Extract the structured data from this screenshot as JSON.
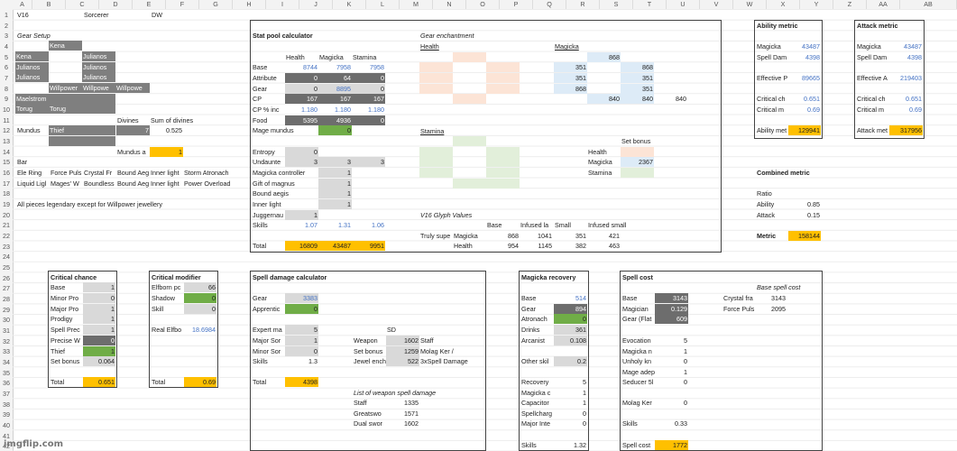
{
  "columns": [
    "A",
    "B",
    "C",
    "D",
    "E",
    "F",
    "G",
    "H",
    "I",
    "J",
    "K",
    "L",
    "M",
    "N",
    "O",
    "P",
    "Q",
    "R",
    "S",
    "T",
    "U",
    "V",
    "W",
    "X",
    "Y",
    "Z",
    "AA",
    "AB"
  ],
  "rows": [
    "1",
    "2",
    "3",
    "4",
    "5",
    "6",
    "7",
    "8",
    "9",
    "10",
    "11",
    "12",
    "13",
    "14",
    "15",
    "16",
    "17",
    "18",
    "19",
    "20",
    "21",
    "22",
    "23",
    "24",
    "25",
    "26",
    "27",
    "28",
    "29",
    "30",
    "31",
    "32",
    "33",
    "34",
    "35",
    "36",
    "37",
    "38",
    "39",
    "40",
    "41",
    "42"
  ],
  "watermark": "imgflip.com",
  "top": {
    "v16": "V16",
    "sorcerer": "Sorcerer",
    "dw": "DW"
  },
  "gear": {
    "title": "Gear Setup",
    "r4": "Kena",
    "r5a": "Kena",
    "r5b": "Julianos",
    "r6a": "Julianos",
    "r6b": "Julianos",
    "r7a": "Julianos",
    "r7b": "Julianos",
    "r8a": "Willpower",
    "r8b": "Willpowe",
    "r8c": "Willpowe",
    "r9": "Maelstrom",
    "r10a": "Torug",
    "r10b": "Torug",
    "divines": "Divines",
    "sum_divines": "Sum of divines",
    "mundus": "Mundus",
    "thief": "Thief",
    "div_val": "7",
    "sum_val": "0.525",
    "mundus_a": "Mundus a",
    "mundus_val": "1",
    "bar": "Bar",
    "r16": [
      "Ele Ring",
      "Force Puls",
      "Crystal Fr",
      "Bound Aeg",
      "Inner light",
      "Storm Atronach"
    ],
    "r17": [
      "Liquid Ligl",
      "Mages' W",
      "Boundless",
      "Bound Aeg",
      "Inner light",
      "Power Overload"
    ],
    "note": "All pieces legendary except for Willpower jewellery"
  },
  "stat": {
    "title": "Stat pool calculator",
    "health": "Health",
    "magicka": "Magicka",
    "stamina": "Stamina",
    "rows": [
      {
        "label": "Base",
        "h": "8744",
        "m": "7958",
        "s": "7958"
      },
      {
        "label": "Attribute",
        "h": "0",
        "m": "64",
        "s": "0"
      },
      {
        "label": "Gear",
        "h": "0",
        "m": "8895",
        "s": "0"
      },
      {
        "label": "CP",
        "h": "167",
        "m": "167",
        "s": "167"
      },
      {
        "label": "CP % inc",
        "h": "1.180",
        "m": "1.180",
        "s": "1.180"
      },
      {
        "label": "Food",
        "h": "5395",
        "m": "4936",
        "s": "0"
      }
    ],
    "mage_mundus": "Mage mundus",
    "mage_val": "0",
    "entropy": "Entropy",
    "entropy_v": "0",
    "undaunted": "Undaunte",
    "und_h": "3",
    "und_m": "3",
    "und_s": "3",
    "magicka_controller": "Magicka controller",
    "mc_v": "1",
    "gift": "Gift of magnus",
    "gift_v": "1",
    "bound": "Bound aegis",
    "bound_v": "1",
    "inner": "Inner light",
    "inner_v": "1",
    "jugg": "Juggernau",
    "jugg_v": "1",
    "skills": "Skills",
    "sk_h": "1.07",
    "sk_m": "1.31",
    "sk_s": "1.06",
    "total": "Total",
    "t_h": "16809",
    "t_m": "43487",
    "t_s": "9951"
  },
  "ench": {
    "title": "Gear enchantment",
    "health": "Health",
    "magicka": "Magicka",
    "stamina": "Stamina",
    "m_top": "868",
    "m_col1": [
      "351",
      "351",
      "868"
    ],
    "m_col2": [
      "868",
      "351",
      "351"
    ],
    "m_row": [
      "840",
      "840",
      "840"
    ],
    "set_bonus": "Set bonus",
    "sb_health": "Health",
    "sb_magicka": "Magicka",
    "sb_magicka_v": "2367",
    "sb_stamina": "Stamina",
    "glyph_title": "V16 Glyph Values",
    "g_hdr": [
      "Base",
      "Infused la",
      "Small",
      "Infused small"
    ],
    "g_r1_label": "Truly supe",
    "g_r1_type": "Magicka",
    "g_r1": [
      "868",
      "1041",
      "351",
      "421"
    ],
    "g_r2_type": "Health",
    "g_r2": [
      "954",
      "1145",
      "382",
      "463"
    ]
  },
  "ability": {
    "title": "Ability metric",
    "magicka": "Magicka",
    "magicka_v": "43487",
    "spell": "Spell Dam",
    "spell_v": "4398",
    "eff": "Effective P",
    "eff_v": "89665",
    "crit_ch": "Critical ch",
    "crit_ch_v": "0.651",
    "crit_m": "Critical m",
    "crit_m_v": "0.69",
    "metric": "Ability met",
    "metric_v": "129941"
  },
  "attack": {
    "title": "Attack metric",
    "magicka": "Magicka",
    "magicka_v": "43487",
    "spell": "Spell Dam",
    "spell_v": "4398",
    "eff": "Effective A",
    "eff_v": "219403",
    "crit_ch": "Critical ch",
    "crit_ch_v": "0.651",
    "crit_m": "Critical m",
    "crit_m_v": "0.69",
    "metric": "Attack met",
    "metric_v": "317956"
  },
  "combined": {
    "title": "Combined metric",
    "ratio": "Ratio",
    "ability": "Ability",
    "ability_v": "0.85",
    "attack": "Attack",
    "attack_v": "0.15",
    "metric": "Metric",
    "metric_v": "158144"
  },
  "critc": {
    "title": "Critical chance",
    "rows": [
      {
        "l": "Base",
        "v": "1"
      },
      {
        "l": "Minor Pro",
        "v": "0"
      },
      {
        "l": "Major Pro",
        "v": "1"
      },
      {
        "l": "Prodigy",
        "v": "1"
      },
      {
        "l": "Spell Prec",
        "v": "1"
      },
      {
        "l": "Precise W",
        "v": "0"
      },
      {
        "l": "Thief",
        "v": "1"
      },
      {
        "l": "Set bonus",
        "v": "0.064"
      }
    ],
    "total": "Total",
    "total_v": "0.651"
  },
  "critm": {
    "title": "Critical modifier",
    "elfborn": "Elfborn pc",
    "elfborn_v": "66",
    "shadow": "Shadow",
    "shadow_v": "0",
    "skill": "Skill",
    "skill_v": "0",
    "real": "Real Elfbo",
    "real_v": "18.6984",
    "total": "Total",
    "total_v": "0.69"
  },
  "spell": {
    "title": "Spell damage calculator",
    "gear": "Gear",
    "gear_v": "3383",
    "appr": "Apprentic",
    "appr_v": "0",
    "expert": "Expert ma",
    "expert_v": "5",
    "major": "Major Sor",
    "major_v": "1",
    "minor": "Minor Sor",
    "minor_v": "0",
    "skills": "Skills",
    "skills_v": "1.3",
    "total": "Total",
    "total_v": "4398",
    "sd": "SD",
    "weapon": "Weapon",
    "weapon_v": "1602",
    "weapon_t": "Staff",
    "setb": "Set bonus",
    "setb_v": "1259",
    "setb_t": "Molag Ker /",
    "jewel": "Jewel ench",
    "jewel_v": "522",
    "jewel_t": "3xSpell Damage",
    "list_title": "List of weapon spell damage",
    "list": [
      {
        "l": "Staff",
        "v": "1335"
      },
      {
        "l": "Greatswo",
        "v": "1571"
      },
      {
        "l": "Dual swor",
        "v": "1602"
      }
    ]
  },
  "magrec": {
    "title": "Magicka recovery",
    "base": "Base",
    "base_v": "514",
    "gear": "Gear",
    "gear_v": "894",
    "atro": "Atronach",
    "atro_v": "0",
    "drinks": "Drinks",
    "drinks_v": "361",
    "arcanist": "Arcanist",
    "arcanist_v": "0.108",
    "other": "Other skil",
    "other_v": "0.2",
    "recovery": "Recovery",
    "recovery_v": "5",
    "mc": "Magicka c",
    "mc_v": "1",
    "cap": "Capacitor",
    "cap_v": "1",
    "spellch": "Spellcharg",
    "spellch_v": "0",
    "major_int": "Major Inte",
    "major_int_v": "0",
    "skills": "Skills",
    "skills_v": "1.32"
  },
  "cost": {
    "title": "Spell cost",
    "base": "Base",
    "base_v": "3143",
    "magician": "Magician",
    "magician_v": "0.129",
    "gear": "Gear (Flat",
    "gear_v": "609",
    "evoc": "Evocation",
    "evoc_v": "5",
    "magicka_n": "Magicka n",
    "magicka_n_v": "1",
    "unholy": "Unholy kn",
    "unholy_v": "0",
    "mage_ad": "Mage adep",
    "mage_ad_v": "1",
    "seducer": "Seducer 5l",
    "seducer_v": "0",
    "molag": "Molag Ker",
    "molag_v": "0",
    "skills": "Skills",
    "skills_v": "0.33",
    "spell_cost": "Spell cost",
    "spell_cost_v": "1772",
    "base_title": "Base spell cost",
    "crystal": "Crystal fra",
    "crystal_v": "3143",
    "force": "Force Puls",
    "force_v": "2095"
  }
}
